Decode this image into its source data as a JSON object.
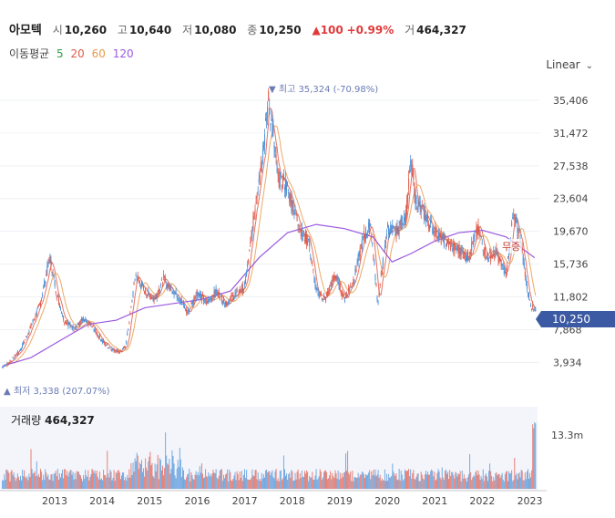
{
  "header": {
    "name": "아모텍",
    "open_label": "시",
    "open": "10,260",
    "high_label": "고",
    "high": "10,640",
    "low_label": "저",
    "low": "10,080",
    "close_label": "종",
    "close": "10,250",
    "change": "▲100",
    "change_pct": "+0.99%",
    "volume_label": "거",
    "volume": "464,327"
  },
  "ma": {
    "label": "이동평균",
    "p5": "5",
    "p20": "20",
    "p60": "60",
    "p120": "120",
    "colors": {
      "p5": "#2e9e44",
      "p20": "#e05a4a",
      "p60": "#e89a4a",
      "p120": "#9b59e0"
    }
  },
  "scale_mode": "Linear",
  "current_price_tag": "10,250",
  "annotations": {
    "high": "▼ 최고 35,324 (-70.98%)",
    "low": "▲ 최저 3,338 (207.07%)",
    "muj": "무증"
  },
  "volume_panel": {
    "label": "거래량",
    "value": "464,327",
    "axis_max": "13.3m"
  },
  "colors": {
    "up": "#e05a4a",
    "down": "#4a90d9",
    "tag": "#3b5aa3",
    "annot": "#6a7bb5"
  },
  "chart_data": {
    "type": "line",
    "y_ticks": [
      "35,406",
      "31,472",
      "27,538",
      "23,604",
      "19,670",
      "15,736",
      "11,802",
      "7,868",
      "3,934"
    ],
    "y_tick_values": [
      35406,
      31472,
      27538,
      23604,
      19670,
      15736,
      11802,
      7868,
      3934
    ],
    "x_ticks": [
      "2013",
      "2014",
      "2015",
      "2016",
      "2017",
      "2018",
      "2019",
      "2020",
      "2021",
      "2022",
      "2023"
    ],
    "x_tick_years": [
      2013,
      2014,
      2015,
      2016,
      2017,
      2018,
      2019,
      2020,
      2021,
      2022,
      2023
    ],
    "ylim": [
      2000,
      36500
    ],
    "xlim": [
      2012.35,
      2023.7
    ],
    "price_series": {
      "x": [
        2012.4,
        2012.6,
        2012.8,
        2013.0,
        2013.2,
        2013.4,
        2013.55,
        2013.7,
        2013.9,
        2014.1,
        2014.3,
        2014.5,
        2014.7,
        2014.9,
        2015.0,
        2015.1,
        2015.2,
        2015.4,
        2015.6,
        2015.8,
        2015.9,
        2016.1,
        2016.3,
        2016.5,
        2016.7,
        2016.9,
        2017.1,
        2017.3,
        2017.5,
        2017.6,
        2017.75,
        2017.9,
        2018.0,
        2018.1,
        2018.2,
        2018.35,
        2018.5,
        2018.7,
        2018.85,
        2019.0,
        2019.2,
        2019.4,
        2019.6,
        2019.8,
        2020.0,
        2020.15,
        2020.3,
        2020.5,
        2020.7,
        2020.9,
        2021.0,
        2021.1,
        2021.25,
        2021.4,
        2021.6,
        2021.8,
        2022.0,
        2022.2,
        2022.4,
        2022.6,
        2022.8,
        2023.0,
        2023.15,
        2023.3,
        2023.45,
        2023.55,
        2023.62
      ],
      "y": [
        3338,
        4200,
        5600,
        8200,
        11000,
        16500,
        12000,
        9000,
        8000,
        9000,
        8200,
        6500,
        5500,
        5200,
        6000,
        10000,
        14500,
        12500,
        11500,
        14000,
        13000,
        12000,
        9800,
        12500,
        11000,
        12500,
        11000,
        12000,
        13000,
        17000,
        24000,
        30000,
        35324,
        31000,
        26000,
        25500,
        23000,
        19500,
        18500,
        12500,
        11500,
        14500,
        11500,
        14000,
        19000,
        20500,
        11000,
        20000,
        19500,
        22000,
        28000,
        23500,
        22000,
        20500,
        19000,
        18000,
        17500,
        16500,
        20000,
        16500,
        17000,
        14500,
        21500,
        19000,
        12500,
        10500,
        10250
      ]
    },
    "ma120": {
      "x": [
        2012.4,
        2013.0,
        2013.6,
        2014.2,
        2014.8,
        2015.4,
        2016.0,
        2016.6,
        2017.2,
        2017.8,
        2018.4,
        2019.0,
        2019.6,
        2020.2,
        2020.6,
        2021.0,
        2021.5,
        2022.0,
        2022.5,
        2023.0,
        2023.6
      ],
      "y": [
        3500,
        4500,
        6500,
        8500,
        9000,
        10500,
        11000,
        11500,
        12500,
        16500,
        19500,
        20500,
        20000,
        19000,
        16000,
        17000,
        18500,
        19500,
        19800,
        19000,
        16500
      ]
    },
    "volume_axis_max": 13300000,
    "volume_title": "거래량"
  }
}
